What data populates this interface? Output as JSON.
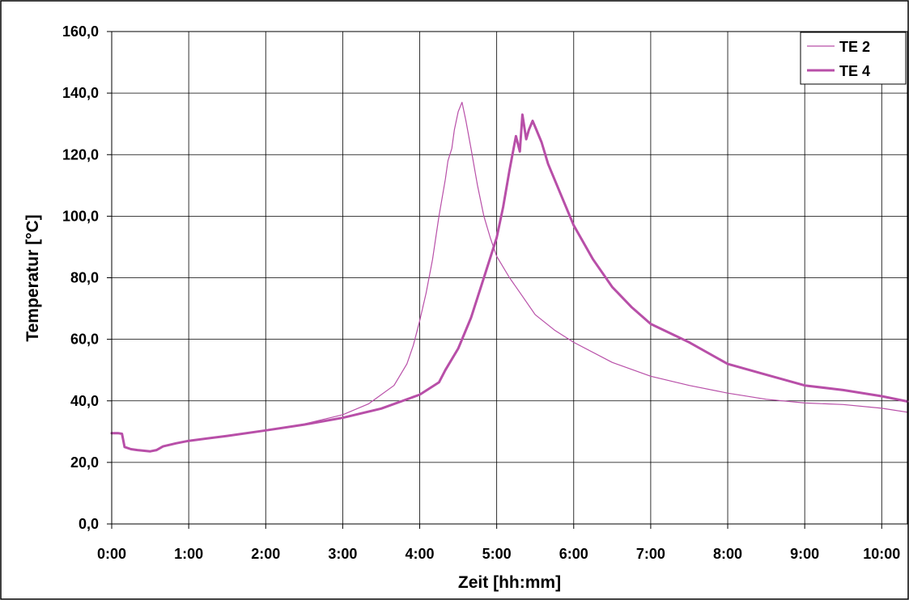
{
  "chart_data": {
    "type": "line",
    "xlabel": "Zeit [hh:mm]",
    "ylabel": "Temperatur [°C]",
    "x_unit": "hh:mm",
    "xlim": [
      "0:00",
      "10:20"
    ],
    "ylim": [
      0,
      160
    ],
    "x_ticks": [
      "0:00",
      "1:00",
      "2:00",
      "3:00",
      "4:00",
      "5:00",
      "6:00",
      "7:00",
      "8:00",
      "9:00",
      "10:00"
    ],
    "y_ticks": [
      "0,0",
      "20,0",
      "40,0",
      "60,0",
      "80,0",
      "100,0",
      "120,0",
      "140,0",
      "160,0"
    ],
    "grid": true,
    "legend": "top-right",
    "series": [
      {
        "name": "TE 2",
        "color": "#b84fa8",
        "width": "thin",
        "points": [
          [
            "0:00",
            29.5
          ],
          [
            "0:05",
            29.5
          ],
          [
            "0:08",
            29.3
          ],
          [
            "0:10",
            25.0
          ],
          [
            "0:15",
            24.3
          ],
          [
            "0:20",
            24.0
          ],
          [
            "0:30",
            23.6
          ],
          [
            "0:35",
            24.0
          ],
          [
            "0:40",
            25.2
          ],
          [
            "0:50",
            26.2
          ],
          [
            "1:00",
            27.0
          ],
          [
            "1:30",
            28.6
          ],
          [
            "2:00",
            30.4
          ],
          [
            "2:30",
            32.5
          ],
          [
            "3:00",
            35.5
          ],
          [
            "3:20",
            39.0
          ],
          [
            "3:40",
            45.0
          ],
          [
            "3:50",
            52.0
          ],
          [
            "3:55",
            58.0
          ],
          [
            "4:00",
            66.0
          ],
          [
            "4:05",
            75.0
          ],
          [
            "4:10",
            86.0
          ],
          [
            "4:15",
            100.0
          ],
          [
            "4:20",
            112.0
          ],
          [
            "4:22",
            118.0
          ],
          [
            "4:25",
            122.0
          ],
          [
            "4:27",
            128.0
          ],
          [
            "4:30",
            134.0
          ],
          [
            "4:33",
            137.0
          ],
          [
            "4:36",
            131.0
          ],
          [
            "4:40",
            122.0
          ],
          [
            "4:45",
            110.0
          ],
          [
            "4:50",
            100.0
          ],
          [
            "4:55",
            93.0
          ],
          [
            "5:00",
            87.0
          ],
          [
            "5:10",
            80.0
          ],
          [
            "5:20",
            74.0
          ],
          [
            "5:30",
            68.0
          ],
          [
            "5:45",
            63.0
          ],
          [
            "6:00",
            59.0
          ],
          [
            "6:30",
            52.5
          ],
          [
            "7:00",
            48.0
          ],
          [
            "7:30",
            45.0
          ],
          [
            "8:00",
            42.5
          ],
          [
            "8:30",
            40.5
          ],
          [
            "9:00",
            39.3
          ],
          [
            "9:30",
            38.8
          ],
          [
            "10:00",
            37.6
          ],
          [
            "10:20",
            36.3
          ]
        ]
      },
      {
        "name": "TE 4",
        "color": "#b84fa8",
        "width": "thick",
        "points": [
          [
            "0:00",
            29.5
          ],
          [
            "0:05",
            29.5
          ],
          [
            "0:08",
            29.3
          ],
          [
            "0:10",
            25.0
          ],
          [
            "0:15",
            24.3
          ],
          [
            "0:20",
            24.0
          ],
          [
            "0:30",
            23.6
          ],
          [
            "0:35",
            24.0
          ],
          [
            "0:40",
            25.2
          ],
          [
            "0:50",
            26.2
          ],
          [
            "1:00",
            27.0
          ],
          [
            "1:30",
            28.6
          ],
          [
            "2:00",
            30.4
          ],
          [
            "2:30",
            32.3
          ],
          [
            "3:00",
            34.5
          ],
          [
            "3:30",
            37.5
          ],
          [
            "4:00",
            42.0
          ],
          [
            "4:15",
            46.0
          ],
          [
            "4:20",
            50.0
          ],
          [
            "4:30",
            57.0
          ],
          [
            "4:40",
            67.0
          ],
          [
            "4:50",
            80.0
          ],
          [
            "5:00",
            93.0
          ],
          [
            "5:05",
            103.0
          ],
          [
            "5:10",
            115.0
          ],
          [
            "5:15",
            126.0
          ],
          [
            "5:18",
            121.0
          ],
          [
            "5:20",
            133.0
          ],
          [
            "5:23",
            125.0
          ],
          [
            "5:25",
            128.0
          ],
          [
            "5:28",
            131.0
          ],
          [
            "5:30",
            129.0
          ],
          [
            "5:35",
            124.0
          ],
          [
            "5:40",
            117.0
          ],
          [
            "5:50",
            107.0
          ],
          [
            "6:00",
            97.0
          ],
          [
            "6:15",
            86.0
          ],
          [
            "6:30",
            77.0
          ],
          [
            "6:45",
            70.5
          ],
          [
            "7:00",
            65.0
          ],
          [
            "7:30",
            59.0
          ],
          [
            "8:00",
            52.0
          ],
          [
            "8:30",
            48.5
          ],
          [
            "9:00",
            45.0
          ],
          [
            "9:30",
            43.5
          ],
          [
            "10:00",
            41.5
          ],
          [
            "10:20",
            39.8
          ]
        ]
      }
    ]
  }
}
